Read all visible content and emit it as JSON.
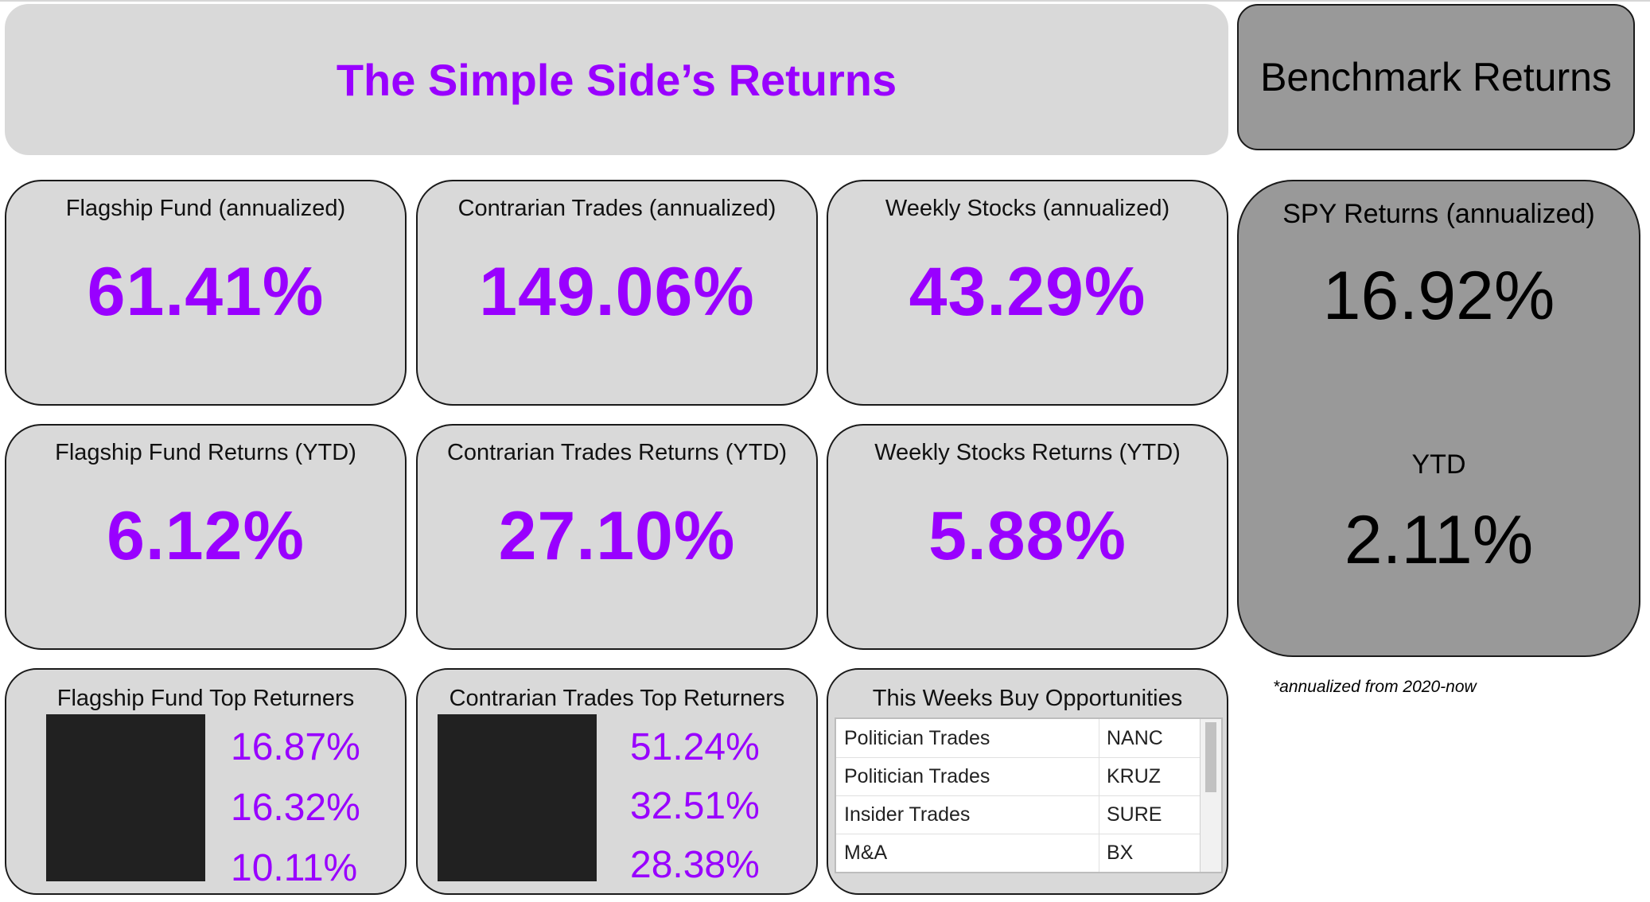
{
  "header": {
    "title": "The Simple Side’s Returns",
    "benchmark_title": "Benchmark Returns"
  },
  "annualized": [
    {
      "title": "Flagship Fund (annualized)",
      "value": "61.41%"
    },
    {
      "title": "Contrarian Trades (annualized)",
      "value": "149.06%"
    },
    {
      "title": "Weekly Stocks (annualized)",
      "value": "43.29%"
    }
  ],
  "ytd": [
    {
      "title": "Flagship Fund Returns (YTD)",
      "value": "6.12%"
    },
    {
      "title": "Contrarian Trades Returns (YTD)",
      "value": "27.10%"
    },
    {
      "title": "Weekly Stocks Returns (YTD)",
      "value": "5.88%"
    }
  ],
  "spy": {
    "title": "SPY Returns (annualized)",
    "annualized_value": "16.92%",
    "ytd_label": "YTD",
    "ytd_value": "2.11%"
  },
  "footnote": "*annualized from 2020-now",
  "top_returners": [
    {
      "title": "Flagship Fund Top Returners",
      "values": [
        "16.87%",
        "16.32%",
        "10.11%"
      ]
    },
    {
      "title": "Contrarian Trades Top Returners",
      "values": [
        "51.24%",
        "32.51%",
        "28.38%"
      ]
    }
  ],
  "opportunities": {
    "title": "This Weeks Buy Opportunities",
    "rows": [
      {
        "category": "Politician Trades",
        "ticker": "NANC"
      },
      {
        "category": "Politician Trades",
        "ticker": "KRUZ"
      },
      {
        "category": "Insider Trades",
        "ticker": "SURE"
      },
      {
        "category": "M&A",
        "ticker": "BX"
      }
    ]
  },
  "colors": {
    "accent_purple": "#9900ff",
    "card_bg": "#d9d9d9",
    "benchmark_bg": "#999999"
  }
}
